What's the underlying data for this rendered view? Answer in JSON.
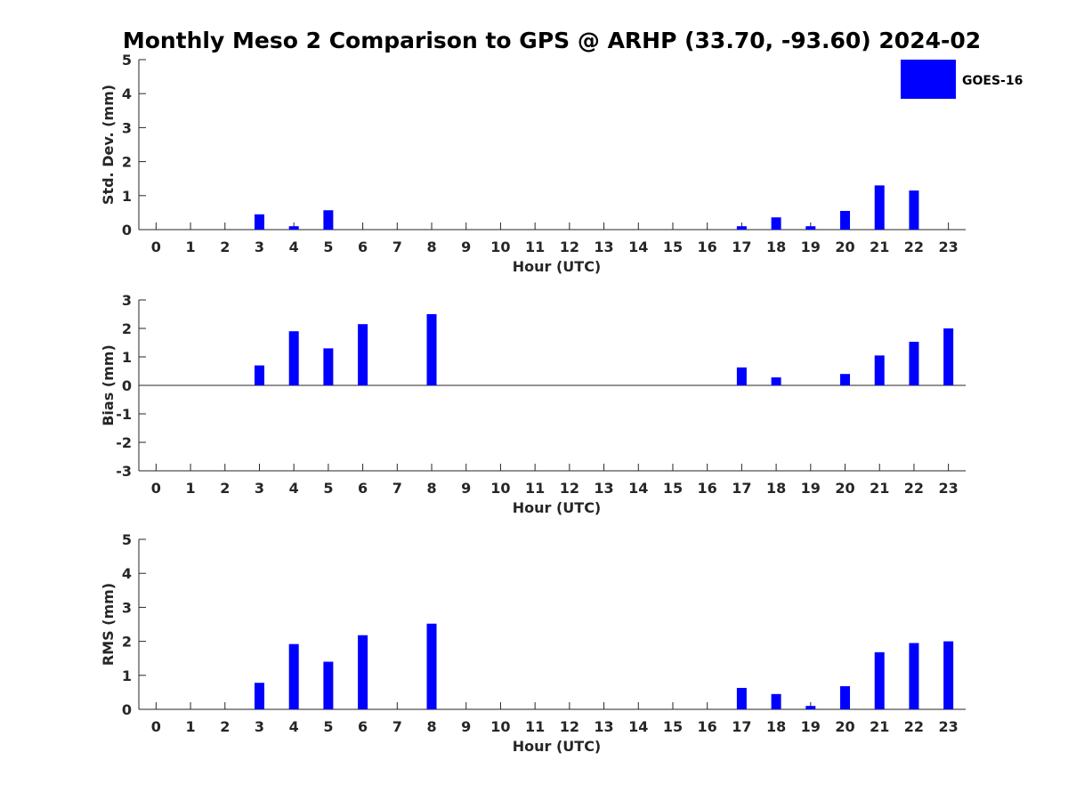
{
  "figure": {
    "title": "Monthly Meso 2 Comparison to GPS @ ARHP (33.70, -93.60) 2024-02"
  },
  "legend": {
    "label": "GOES-16",
    "color": "#0000ff"
  },
  "chart_data": [
    {
      "type": "bar",
      "title": "Monthly Meso 2 Comparison to GPS @ ARHP (33.70, -93.60) 2024-02",
      "xlabel": "Hour (UTC)",
      "ylabel": "Std. Dev. (mm)",
      "categories": [
        "0",
        "1",
        "2",
        "3",
        "4",
        "5",
        "6",
        "7",
        "8",
        "9",
        "10",
        "11",
        "12",
        "13",
        "14",
        "15",
        "16",
        "17",
        "18",
        "19",
        "20",
        "21",
        "22",
        "23"
      ],
      "xlim": [
        -0.5,
        23.5
      ],
      "ylim": [
        0,
        5
      ],
      "yticks": [
        0,
        1,
        2,
        3,
        4,
        5
      ],
      "series": [
        {
          "name": "GOES-16",
          "color": "#0000ff",
          "values": [
            null,
            null,
            null,
            0.45,
            0.1,
            0.57,
            null,
            null,
            null,
            null,
            null,
            null,
            null,
            null,
            null,
            null,
            null,
            0.1,
            0.36,
            0.1,
            0.55,
            1.3,
            1.15,
            null
          ]
        }
      ],
      "legend": "top-right"
    },
    {
      "type": "bar",
      "xlabel": "Hour (UTC)",
      "ylabel": "Bias (mm)",
      "categories": [
        "0",
        "1",
        "2",
        "3",
        "4",
        "5",
        "6",
        "7",
        "8",
        "9",
        "10",
        "11",
        "12",
        "13",
        "14",
        "15",
        "16",
        "17",
        "18",
        "19",
        "20",
        "21",
        "22",
        "23"
      ],
      "xlim": [
        -0.5,
        23.5
      ],
      "ylim": [
        -3,
        3
      ],
      "yticks": [
        -3,
        -2,
        -1,
        0,
        1,
        2,
        3
      ],
      "zero_line": true,
      "series": [
        {
          "name": "GOES-16",
          "color": "#0000ff",
          "values": [
            null,
            null,
            null,
            0.7,
            1.9,
            1.3,
            2.15,
            null,
            2.5,
            null,
            null,
            null,
            null,
            null,
            null,
            null,
            null,
            0.63,
            0.28,
            null,
            0.4,
            1.05,
            1.53,
            2.0
          ]
        }
      ]
    },
    {
      "type": "bar",
      "xlabel": "Hour (UTC)",
      "ylabel": "RMS (mm)",
      "categories": [
        "0",
        "1",
        "2",
        "3",
        "4",
        "5",
        "6",
        "7",
        "8",
        "9",
        "10",
        "11",
        "12",
        "13",
        "14",
        "15",
        "16",
        "17",
        "18",
        "19",
        "20",
        "21",
        "22",
        "23"
      ],
      "xlim": [
        -0.5,
        23.5
      ],
      "ylim": [
        0,
        5
      ],
      "yticks": [
        0,
        1,
        2,
        3,
        4,
        5
      ],
      "series": [
        {
          "name": "GOES-16",
          "color": "#0000ff",
          "values": [
            null,
            null,
            null,
            0.78,
            1.92,
            1.4,
            2.18,
            null,
            2.52,
            null,
            null,
            null,
            null,
            null,
            null,
            null,
            null,
            0.63,
            0.45,
            0.1,
            0.68,
            1.68,
            1.95,
            2.0
          ]
        }
      ]
    }
  ]
}
